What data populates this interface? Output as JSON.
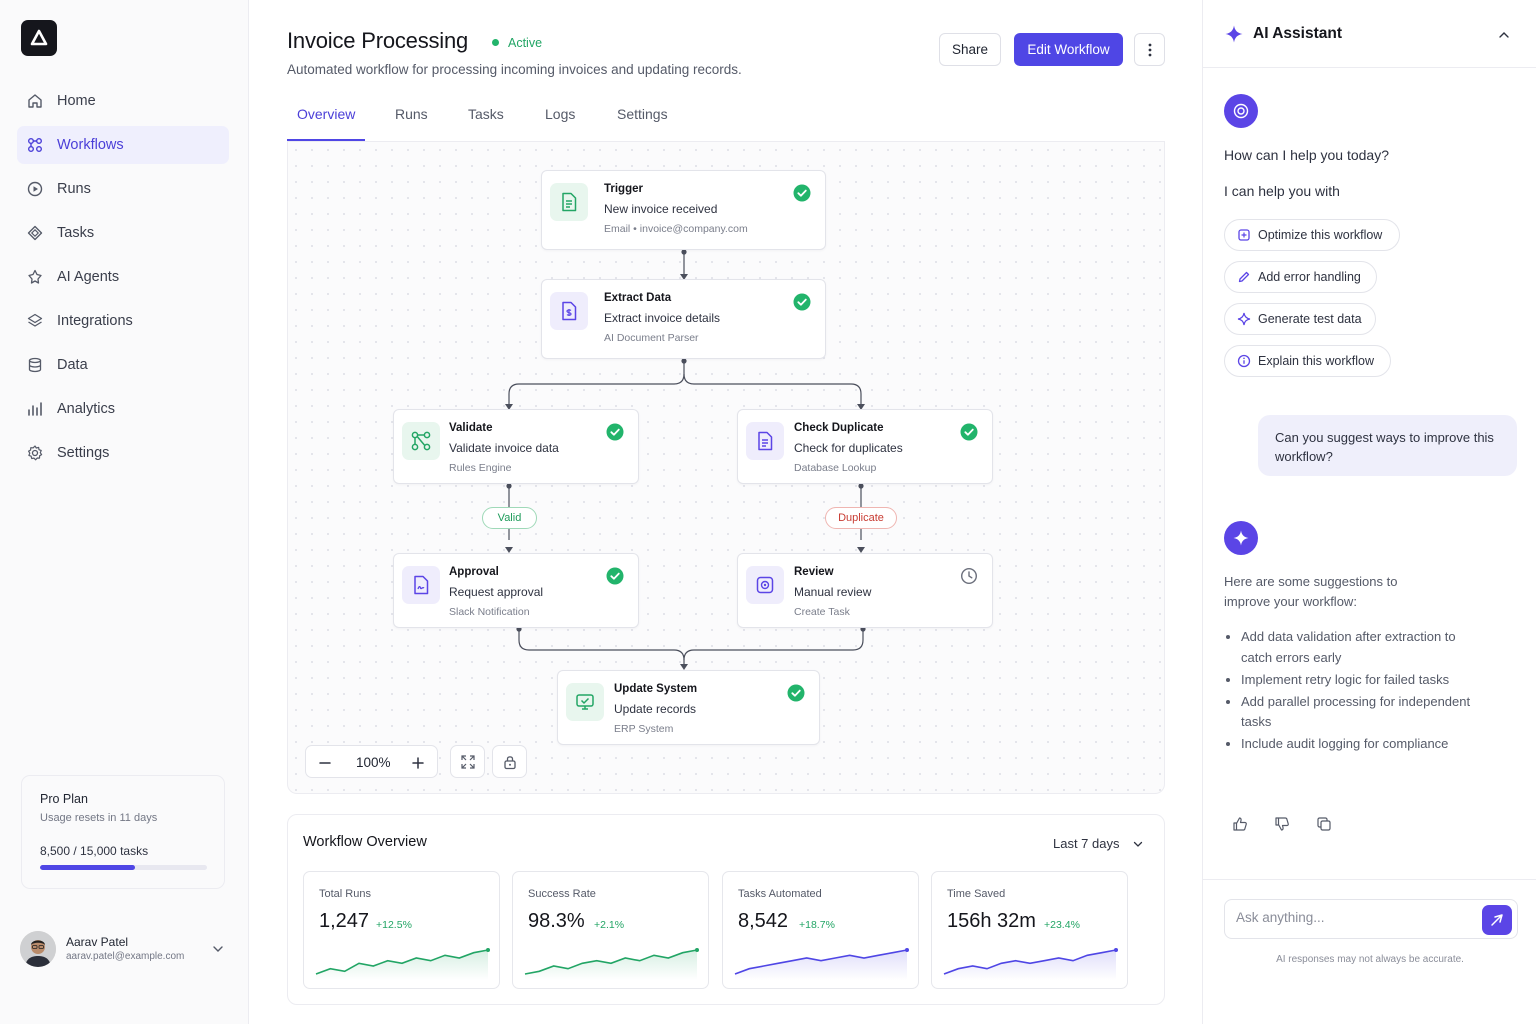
{
  "sidebar": {
    "nav": [
      {
        "label": "Home",
        "icon": "home-icon"
      },
      {
        "label": "Workflows",
        "icon": "workflow-icon",
        "active": true
      },
      {
        "label": "Runs",
        "icon": "play-icon"
      },
      {
        "label": "Tasks",
        "icon": "tasks-icon"
      },
      {
        "label": "AI Agents",
        "icon": "ai-agents-icon"
      },
      {
        "label": "Integrations",
        "icon": "integrations-icon"
      },
      {
        "label": "Data",
        "icon": "database-icon"
      },
      {
        "label": "Analytics",
        "icon": "analytics-icon"
      },
      {
        "label": "Settings",
        "icon": "gear-icon"
      }
    ],
    "plan": {
      "name": "Pro Plan",
      "reset": "Usage resets in 11 days",
      "usage": "8,500 / 15,000 tasks",
      "progress": 0.567
    },
    "user": {
      "name": "Aarav Patel",
      "email": "aarav.patel@example.com"
    }
  },
  "header": {
    "title": "Invoice Processing",
    "status": "Active",
    "subtitle": "Automated workflow for processing incoming invoices and updating records.",
    "share_label": "Share",
    "edit_label": "Edit Workflow"
  },
  "tabs": [
    "Overview",
    "Runs",
    "Tasks",
    "Logs",
    "Settings"
  ],
  "nodes": {
    "trigger": {
      "title": "Trigger",
      "desc": "New invoice received",
      "sub": "Email • invoice@company.com",
      "status": "complete"
    },
    "extract": {
      "title": "Extract Data",
      "desc": "Extract invoice details",
      "sub": "AI Document Parser",
      "status": "complete"
    },
    "validate": {
      "title": "Validate",
      "desc": "Validate invoice data",
      "sub": "Rules Engine",
      "status": "complete"
    },
    "check_duplicate": {
      "title": "Check Duplicate",
      "desc": "Check for duplicates",
      "sub": "Database Lookup",
      "status": "complete"
    },
    "approval": {
      "title": "Approval",
      "desc": "Request approval",
      "sub": "Slack Notification",
      "status": "complete"
    },
    "review": {
      "title": "Review",
      "desc": "Manual review",
      "sub": "Create Task",
      "status": "pending"
    },
    "update": {
      "title": "Update System",
      "desc": "Update records",
      "sub": "ERP System",
      "status": "complete"
    }
  },
  "edge_labels": {
    "valid": "Valid",
    "duplicate": "Duplicate"
  },
  "zoom": "100%",
  "overview": {
    "title": "Workflow Overview",
    "range": "Last 7 days",
    "stats": [
      {
        "label": "Total Runs",
        "value": "1,247",
        "delta": "+12.5%",
        "color": "#22a565",
        "trend": [
          3,
          5,
          4,
          7,
          6,
          8,
          7,
          9,
          8,
          10,
          9,
          11,
          12
        ]
      },
      {
        "label": "Success Rate",
        "value": "98.3%",
        "delta": "+2.1%",
        "color": "#22a565",
        "trend": [
          3,
          4,
          6,
          5,
          7,
          8,
          7,
          9,
          8,
          10,
          9,
          11,
          12
        ]
      },
      {
        "label": "Tasks Automated",
        "value": "8,542",
        "delta": "+18.7%",
        "color": "#4f46e5",
        "trend": [
          3,
          5,
          6,
          7,
          8,
          9,
          8,
          9,
          10,
          9,
          10,
          11,
          12
        ]
      },
      {
        "label": "Time Saved",
        "value": "156h 32m",
        "delta": "+23.4%",
        "color": "#4f46e5",
        "trend": [
          3,
          5,
          6,
          5,
          7,
          8,
          7,
          8,
          9,
          8,
          10,
          11,
          12
        ]
      }
    ]
  },
  "ai": {
    "title": "AI Assistant",
    "greeting": "How can I help you today?",
    "intro": "I can help you with",
    "chips": [
      {
        "label": "Optimize this workflow",
        "icon": "optimize-icon"
      },
      {
        "label": "Add error handling",
        "icon": "pencil-icon"
      },
      {
        "label": "Generate test data",
        "icon": "sparkle-icon"
      },
      {
        "label": "Explain this workflow",
        "icon": "info-icon"
      }
    ],
    "user_message": "Can you suggest ways to improve this workflow?",
    "reply": "Here are some suggestions to improve your workflow:",
    "suggestions": [
      "Add data validation after extraction to catch errors early",
      "Implement retry logic for failed tasks",
      "Add parallel processing for independent tasks",
      "Include audit logging for compliance"
    ],
    "input_placeholder": "Ask anything...",
    "disclaimer": "AI responses may not always be accurate."
  },
  "colors": {
    "accent": "#4f46e5",
    "success": "#22b46b",
    "danger": "#c83b32"
  }
}
